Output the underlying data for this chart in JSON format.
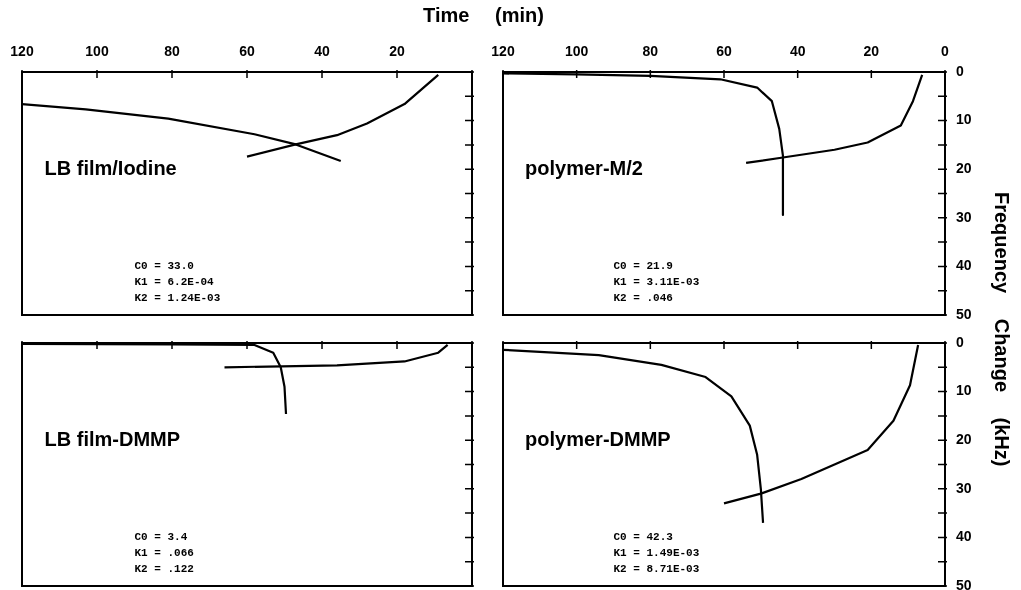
{
  "chart_data": [
    {
      "type": "line",
      "xlabel": "Time (min)",
      "xlim": [
        120,
        0
      ],
      "ylim": [
        50,
        0
      ],
      "tick_labels": "x",
      "xticks": [
        {
          "value": 0,
          "label": null
        },
        20,
        40,
        60,
        80,
        100,
        120
      ],
      "yticks": [
        0,
        5,
        10,
        15,
        20,
        25,
        30,
        35,
        40,
        45,
        50
      ],
      "annotations": [
        "LB film/Iodine",
        "C0 = 33.0",
        "K1 = 6.2E-04",
        "K2 = 1.24E-03"
      ],
      "series": [
        {
          "color": "#000000",
          "x": [
            9,
            18,
            28,
            36,
            47,
            60
          ],
          "values": [
            0.6,
            6.6,
            10.6,
            13,
            14.9,
            17.4
          ]
        },
        {
          "color": "#000000",
          "x": [
            120,
            103,
            81,
            58,
            47,
            35
          ],
          "values": [
            6.6,
            7.7,
            9.6,
            12.8,
            14.9,
            18.3
          ]
        }
      ]
    },
    {
      "type": "line",
      "xlim": [
        120,
        0
      ],
      "ylim": [
        50,
        0
      ],
      "xticks": [
        0,
        20,
        40,
        60,
        80,
        100,
        120
      ],
      "yticks": [
        0,
        {
          "value": 5,
          "label": null
        },
        10,
        {
          "value": 15,
          "label": null
        },
        20,
        {
          "value": 25,
          "label": null
        },
        30,
        {
          "value": 35,
          "label": null
        },
        40,
        {
          "value": 45,
          "label": null
        },
        50
      ],
      "annotations": [
        "polymer-M/2",
        "C0 = 21.9",
        "K1 = 3.11E-03",
        "K2 = .046"
      ],
      "series": [
        {
          "color": "#000000",
          "x": [
            6.2,
            8.7,
            12,
            21,
            30,
            44,
            54
          ],
          "values": [
            0.6,
            6,
            11,
            14.5,
            16,
            17.6,
            18.7
          ]
        },
        {
          "color": "#000000",
          "x": [
            120,
            100,
            80,
            61,
            51,
            47,
            45,
            44,
            44
          ],
          "values": [
            0.3,
            0.5,
            0.8,
            1.5,
            3.2,
            6,
            11.7,
            17.2,
            29.4
          ]
        }
      ]
    },
    {
      "type": "line",
      "xlim": [
        120,
        0
      ],
      "ylim": [
        50,
        0
      ],
      "tick_labels": false,
      "xticks": [
        0,
        20,
        40,
        60,
        80,
        100,
        120
      ],
      "yticks": [
        0,
        5,
        10,
        15,
        20,
        25,
        30,
        35,
        40,
        45,
        50
      ],
      "annotations": [
        "LB film-DMMP",
        "C0 = 3.4",
        "K1 = .066",
        "K2 = .122"
      ],
      "series": [
        {
          "color": "#000000",
          "x": [
            6.5,
            9,
            18,
            36,
            66
          ],
          "values": [
            0.4,
            2,
            3.8,
            4.6,
            5
          ]
        },
        {
          "color": "#000000",
          "x": [
            120,
            80,
            58,
            53,
            51,
            50,
            49.6
          ],
          "values": [
            0.2,
            0.3,
            0.4,
            2,
            5,
            9,
            14.6
          ]
        }
      ]
    },
    {
      "type": "line",
      "ylabel": "Frequency Change (kHz)",
      "xlim": [
        120,
        0
      ],
      "ylim": [
        50,
        0
      ],
      "tick_labels": "y",
      "xticks": [
        0,
        20,
        40,
        60,
        80,
        100,
        120
      ],
      "yticks": [
        0,
        {
          "value": 5,
          "label": null
        },
        10,
        {
          "value": 15,
          "label": null
        },
        20,
        {
          "value": 25,
          "label": null
        },
        30,
        {
          "value": 35,
          "label": null
        },
        40,
        {
          "value": 45,
          "label": null
        },
        50
      ],
      "annotations": [
        "polymer-DMMP",
        "C0 = 42.3",
        "K1 = 1.49E-03",
        "K2 = 8.71E-03"
      ],
      "series": [
        {
          "color": "#000000",
          "x": [
            7.3,
            9.5,
            14,
            21,
            30,
            39,
            50,
            60
          ],
          "values": [
            0.4,
            8.7,
            16,
            22,
            25,
            28,
            31,
            33
          ]
        },
        {
          "color": "#000000",
          "x": [
            120,
            94,
            77,
            65,
            58,
            53,
            51,
            50,
            49.4
          ],
          "values": [
            1.4,
            2.5,
            4.5,
            7,
            11,
            17,
            23,
            30,
            37
          ]
        }
      ]
    }
  ]
}
